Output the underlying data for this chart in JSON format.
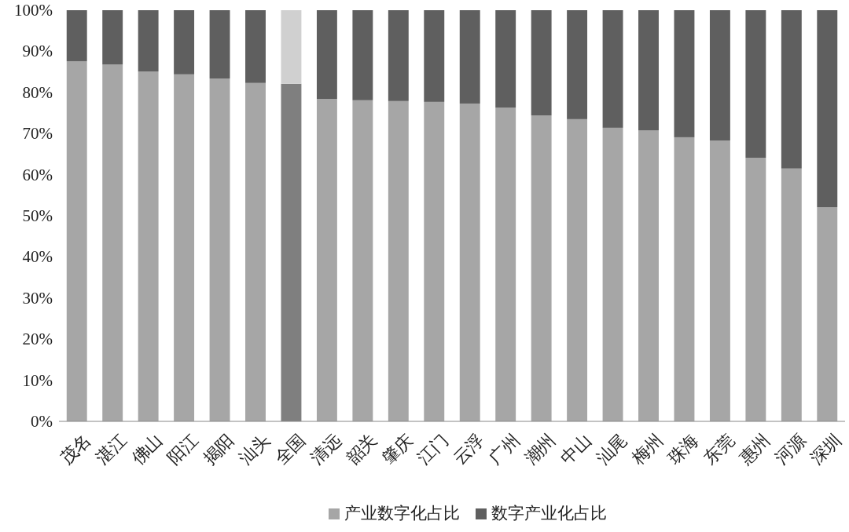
{
  "chart_data": {
    "type": "bar",
    "stacked": true,
    "categories": [
      "茂名",
      "湛江",
      "佛山",
      "阳江",
      "揭阳",
      "汕头",
      "全国",
      "清远",
      "韶关",
      "肇庆",
      "江门",
      "云浮",
      "广州",
      "潮州",
      "中山",
      "汕尾",
      "梅州",
      "珠海",
      "东莞",
      "惠州",
      "河源",
      "深圳"
    ],
    "series": [
      {
        "name": "产业数字化占比",
        "color": "#a6a6a6",
        "colors": [
          "#a6a6a6",
          "#a6a6a6",
          "#a6a6a6",
          "#a6a6a6",
          "#a6a6a6",
          "#a6a6a6",
          "#7f7f7f",
          "#a6a6a6",
          "#a6a6a6",
          "#a6a6a6",
          "#a6a6a6",
          "#a6a6a6",
          "#a6a6a6",
          "#a6a6a6",
          "#a6a6a6",
          "#a6a6a6",
          "#a6a6a6",
          "#a6a6a6",
          "#a6a6a6",
          "#a6a6a6",
          "#a6a6a6",
          "#a6a6a6"
        ],
        "values": [
          87.6,
          86.8,
          85.1,
          84.4,
          83.4,
          82.3,
          82.1,
          78.4,
          78.1,
          77.9,
          77.7,
          77.3,
          76.3,
          74.4,
          73.5,
          71.4,
          70.8,
          69.1,
          68.3,
          64.1,
          61.5,
          52.1
        ]
      },
      {
        "name": "数字产业化占比",
        "color": "#5f5f5f",
        "colors": [
          "#5f5f5f",
          "#5f5f5f",
          "#5f5f5f",
          "#5f5f5f",
          "#5f5f5f",
          "#5f5f5f",
          "#d0d0d0",
          "#5f5f5f",
          "#5f5f5f",
          "#5f5f5f",
          "#5f5f5f",
          "#5f5f5f",
          "#5f5f5f",
          "#5f5f5f",
          "#5f5f5f",
          "#5f5f5f",
          "#5f5f5f",
          "#5f5f5f",
          "#5f5f5f",
          "#5f5f5f",
          "#5f5f5f",
          "#5f5f5f"
        ],
        "values": [
          12.4,
          13.2,
          14.9,
          15.6,
          16.6,
          17.7,
          17.9,
          21.6,
          21.9,
          22.1,
          22.3,
          22.7,
          23.7,
          25.6,
          26.5,
          28.6,
          29.2,
          30.9,
          31.7,
          35.9,
          38.5,
          47.9
        ]
      }
    ],
    "ylim": [
      0,
      100
    ],
    "yticks": [
      {
        "value": 0,
        "label": "0%"
      },
      {
        "value": 10,
        "label": "10%"
      },
      {
        "value": 20,
        "label": "20%"
      },
      {
        "value": 30,
        "label": "30%"
      },
      {
        "value": 40,
        "label": "40%"
      },
      {
        "value": 50,
        "label": "50%"
      },
      {
        "value": 60,
        "label": "60%"
      },
      {
        "value": 70,
        "label": "70%"
      },
      {
        "value": 80,
        "label": "80%"
      },
      {
        "value": 90,
        "label": "90%"
      },
      {
        "value": 100,
        "label": "100%"
      }
    ],
    "legend": "bottom"
  }
}
